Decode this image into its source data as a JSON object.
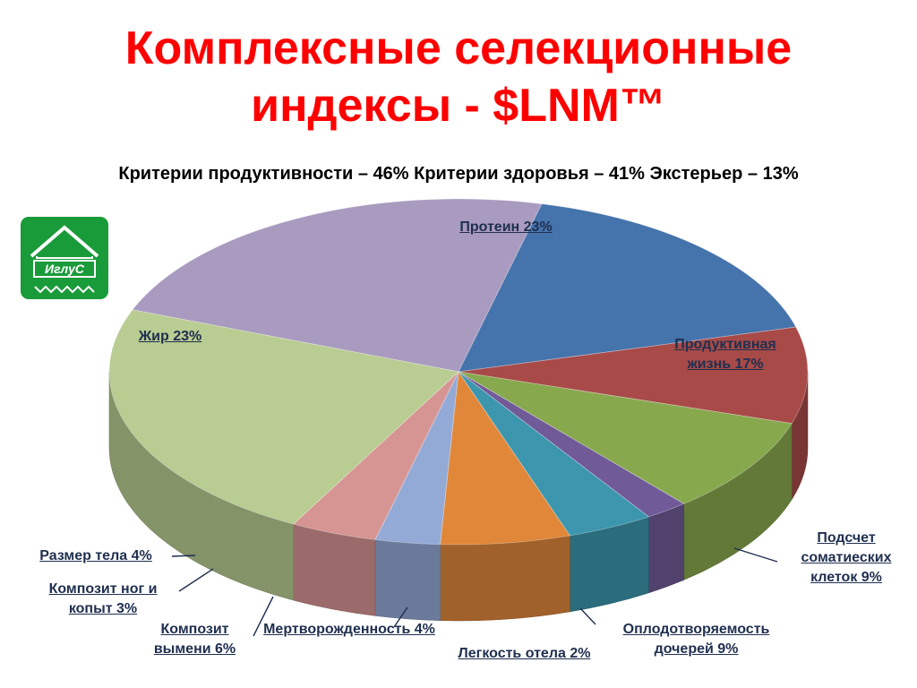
{
  "slide": {
    "title_line1": "Комплексные селекционные",
    "title_line2": "индексы - $LNM™",
    "subtitle": "Критерии продуктивности – 46%  Критерии здоровья – 41%  Экстерьер – 13%"
  },
  "logo": {
    "text": "ИглуС",
    "icon": "house-roof-logo-icon"
  },
  "chart_data": {
    "type": "pie",
    "title": "",
    "slices": [
      {
        "label": "Протеин 23%",
        "value": 23,
        "color": "#a99bbf"
      },
      {
        "label": "Продуктивная жизнь 17%",
        "value": 17,
        "color": "#4573ab"
      },
      {
        "label": "Подсчет соматиеских клеток 9%",
        "value": 9,
        "color": "#a84a48"
      },
      {
        "label": "Оплодотворяемость дочерей 9%",
        "value": 9,
        "color": "#88a84e"
      },
      {
        "label": "Легкость отела 2%",
        "value": 2,
        "color": "#705a98"
      },
      {
        "label": "Мертворожденность 4%",
        "value": 4,
        "color": "#3c96ad"
      },
      {
        "label": "Композит вымени 6%",
        "value": 6,
        "color": "#e0873a"
      },
      {
        "label": "Композит ног и копыт 3%",
        "value": 3,
        "color": "#94aad6"
      },
      {
        "label": "Размер тела 4%",
        "value": 4,
        "color": "#d69493"
      },
      {
        "label": "Жир 23%",
        "value": 23,
        "color": "#b9cc92"
      }
    ]
  }
}
